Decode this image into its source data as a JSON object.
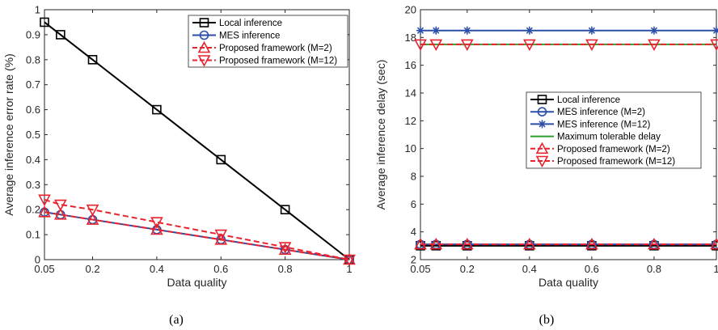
{
  "chart_data": [
    {
      "type": "line",
      "caption": "(a)",
      "xlabel": "Data quality",
      "ylabel": "Average inference error rate (%)",
      "xlim": [
        0.05,
        1
      ],
      "ylim": [
        0,
        1
      ],
      "xticks": [
        0.05,
        0.2,
        0.4,
        0.6,
        0.8,
        1
      ],
      "xtick_labels": [
        "0.05",
        "0.2",
        "0.4",
        "0.6",
        "0.8",
        "1"
      ],
      "yticks": [
        0,
        0.1,
        0.2,
        0.3,
        0.4,
        0.5,
        0.6,
        0.7,
        0.8,
        0.9,
        1
      ],
      "ytick_labels": [
        "0",
        "0.1",
        "0.2",
        "0.3",
        "0.4",
        "0.5",
        "0.6",
        "0.7",
        "0.8",
        "0.9",
        "1"
      ],
      "grid": false,
      "legend_position": "top-right",
      "series": [
        {
          "name": "Local inference",
          "color": "#000000",
          "dash": "solid",
          "marker": "square",
          "x": [
            0.05,
            0.1,
            0.2,
            0.4,
            0.6,
            0.8,
            1
          ],
          "y": [
            0.95,
            0.9,
            0.8,
            0.6,
            0.4,
            0.2,
            0.0
          ]
        },
        {
          "name": "MES inference",
          "color": "#2b4ea8",
          "dash": "solid",
          "marker": "circle",
          "x": [
            0.05,
            0.1,
            0.2,
            0.4,
            0.6,
            0.8,
            1
          ],
          "y": [
            0.19,
            0.18,
            0.16,
            0.12,
            0.08,
            0.04,
            0.0
          ]
        },
        {
          "name": "Proposed framework (M=2)",
          "color": "#e8232d",
          "dash": "dashed",
          "marker": "triangle-up",
          "x": [
            0.05,
            0.1,
            0.2,
            0.4,
            0.6,
            0.8,
            1
          ],
          "y": [
            0.19,
            0.18,
            0.16,
            0.12,
            0.08,
            0.04,
            0.0
          ]
        },
        {
          "name": "Proposed framework (M=12)",
          "color": "#e8232d",
          "dash": "dashed",
          "marker": "triangle-down",
          "x": [
            0.05,
            0.1,
            0.2,
            0.4,
            0.6,
            0.8,
            1
          ],
          "y": [
            0.24,
            0.22,
            0.2,
            0.15,
            0.1,
            0.05,
            0.0
          ]
        }
      ]
    },
    {
      "type": "line",
      "caption": "(b)",
      "xlabel": "Data quality",
      "ylabel": "Average inference delay (sec)",
      "xlim": [
        0.05,
        1
      ],
      "ylim": [
        2,
        20
      ],
      "xticks": [
        0.05,
        0.2,
        0.4,
        0.6,
        0.8,
        1
      ],
      "xtick_labels": [
        "0.05",
        "0.2",
        "0.4",
        "0.6",
        "0.8",
        "1"
      ],
      "yticks": [
        2,
        4,
        6,
        8,
        10,
        12,
        14,
        16,
        18,
        20
      ],
      "ytick_labels": [
        "2",
        "4",
        "6",
        "8",
        "10",
        "12",
        "14",
        "16",
        "18",
        "20"
      ],
      "grid": false,
      "legend_position": "center-right",
      "series": [
        {
          "name": "Local inference",
          "color": "#000000",
          "dash": "solid",
          "marker": "square",
          "x": [
            0.05,
            0.1,
            0.2,
            0.4,
            0.6,
            0.8,
            1
          ],
          "y": [
            3,
            3,
            3,
            3,
            3,
            3,
            3
          ]
        },
        {
          "name": "MES inference (M=2)",
          "color": "#2b4ea8",
          "dash": "solid",
          "marker": "circle",
          "x": [
            0.05,
            0.1,
            0.2,
            0.4,
            0.6,
            0.8,
            1
          ],
          "y": [
            3.1,
            3.1,
            3.1,
            3.1,
            3.1,
            3.1,
            3.1
          ]
        },
        {
          "name": "MES inference (M=12)",
          "color": "#2b4ea8",
          "dash": "solid",
          "marker": "asterisk",
          "x": [
            0.05,
            0.1,
            0.2,
            0.4,
            0.6,
            0.8,
            1
          ],
          "y": [
            18.5,
            18.5,
            18.5,
            18.5,
            18.5,
            18.5,
            18.5
          ]
        },
        {
          "name": "Maximum tolerable delay",
          "color": "#2ca02c",
          "dash": "solid",
          "marker": "none",
          "x": [
            0.05,
            1
          ],
          "y": [
            17.5,
            17.5
          ]
        },
        {
          "name": "Proposed framework (M=2)",
          "color": "#e8232d",
          "dash": "dashed",
          "marker": "triangle-up",
          "x": [
            0.05,
            0.1,
            0.2,
            0.4,
            0.6,
            0.8,
            1
          ],
          "y": [
            3.1,
            3.1,
            3.1,
            3.1,
            3.1,
            3.1,
            3.1
          ]
        },
        {
          "name": "Proposed framework (M=12)",
          "color": "#e8232d",
          "dash": "dashed",
          "marker": "triangle-down",
          "x": [
            0.05,
            0.1,
            0.2,
            0.4,
            0.6,
            0.8,
            1
          ],
          "y": [
            17.5,
            17.5,
            17.5,
            17.5,
            17.5,
            17.5,
            17.5
          ]
        }
      ]
    }
  ]
}
